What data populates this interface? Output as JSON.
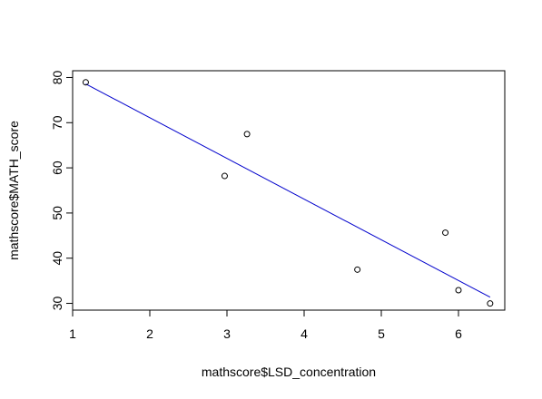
{
  "chart_data": {
    "type": "scatter",
    "title": "",
    "xlabel": "mathscore$LSD_concentration",
    "ylabel": "mathscore$MATH_score",
    "xlim": [
      1.0,
      6.6
    ],
    "ylim": [
      28.5,
      81.5
    ],
    "x_ticks": [
      1,
      2,
      3,
      4,
      5,
      6
    ],
    "y_ticks": [
      30,
      40,
      50,
      60,
      70,
      80
    ],
    "grid": false,
    "legend": "none",
    "points": [
      {
        "x": 1.17,
        "y": 78.93
      },
      {
        "x": 2.97,
        "y": 58.2
      },
      {
        "x": 3.26,
        "y": 67.47
      },
      {
        "x": 4.69,
        "y": 37.47
      },
      {
        "x": 5.83,
        "y": 45.65
      },
      {
        "x": 6.0,
        "y": 32.92
      },
      {
        "x": 6.41,
        "y": 29.97
      }
    ],
    "regression_line": {
      "intercept": 89.12,
      "slope": -9.01,
      "x_range": [
        1.17,
        6.41
      ]
    },
    "colors": {
      "points": "#000000",
      "line": "#0000cc",
      "axes": "#000000"
    }
  }
}
